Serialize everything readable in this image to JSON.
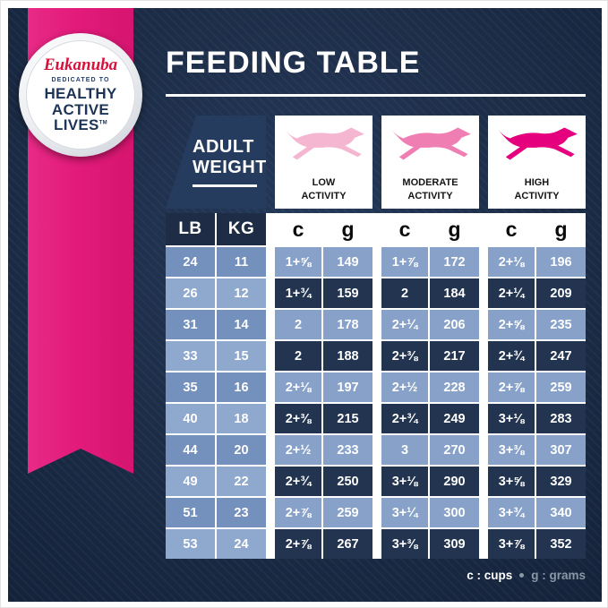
{
  "page": {
    "title": "FEEDING TABLE"
  },
  "badge": {
    "brand": "Eukanuba",
    "dedicated": "DEDICATED TO",
    "line1": "HEALTHY",
    "line2": "ACTIVE",
    "line3": "LIVES",
    "tm": "TM"
  },
  "table": {
    "corner": {
      "line1": "ADULT",
      "line2": "WEIGHT"
    },
    "activity_columns": [
      {
        "id": "low",
        "label_line1": "LOW",
        "label_line2": "ACTIVITY",
        "dog_color": "#F5B6D2"
      },
      {
        "id": "moderate",
        "label_line1": "MODERATE",
        "label_line2": "ACTIVITY",
        "dog_color": "#EF7FB2"
      },
      {
        "id": "high",
        "label_line1": "HIGH",
        "label_line2": "ACTIVITY",
        "dog_color": "#E5007D"
      }
    ],
    "unit_headers": {
      "lb": "LB",
      "kg": "KG",
      "c": "c",
      "g": "g"
    }
  },
  "legend": {
    "cups": "c : cups",
    "grams": "g : grams"
  },
  "colors": {
    "background_navy": "#1E2D45",
    "ribbon_pink": "#E31B7B",
    "row_light_blue": "#87A1C9",
    "row_dark_navy": "#22344F",
    "lbkg_blue_a": "#7490BD",
    "lbkg_blue_b": "#8FA9CE",
    "brand_red": "#D7103C"
  },
  "chart_data": {
    "type": "table",
    "title": "FEEDING TABLE",
    "columns": [
      "LB",
      "KG",
      "LOW ACTIVITY c",
      "LOW ACTIVITY g",
      "MODERATE ACTIVITY c",
      "MODERATE ACTIVITY g",
      "HIGH ACTIVITY c",
      "HIGH ACTIVITY g"
    ],
    "units": {
      "c": "cups",
      "g": "grams"
    },
    "rows": [
      [
        24,
        11,
        "1+5/8",
        149,
        "1+7/8",
        172,
        "2+1/8",
        196
      ],
      [
        26,
        12,
        "1+3/4",
        159,
        "2",
        184,
        "2+1/4",
        209
      ],
      [
        31,
        14,
        "2",
        178,
        "2+1/4",
        206,
        "2+5/8",
        235
      ],
      [
        33,
        15,
        "2",
        188,
        "2+3/8",
        217,
        "2+3/4",
        247
      ],
      [
        35,
        16,
        "2+1/8",
        197,
        "2+1/2",
        228,
        "2+7/8",
        259
      ],
      [
        40,
        18,
        "2+3/8",
        215,
        "2+3/4",
        249,
        "3+1/8",
        283
      ],
      [
        44,
        20,
        "2+1/2",
        233,
        "3",
        270,
        "3+3/8",
        307
      ],
      [
        49,
        22,
        "2+3/4",
        250,
        "3+1/8",
        290,
        "3+5/8",
        329
      ],
      [
        51,
        23,
        "2+7/8",
        259,
        "3+1/4",
        300,
        "3+3/4",
        340
      ],
      [
        53,
        24,
        "2+7/8",
        267,
        "3+3/8",
        309,
        "3+7/8",
        352
      ]
    ]
  }
}
